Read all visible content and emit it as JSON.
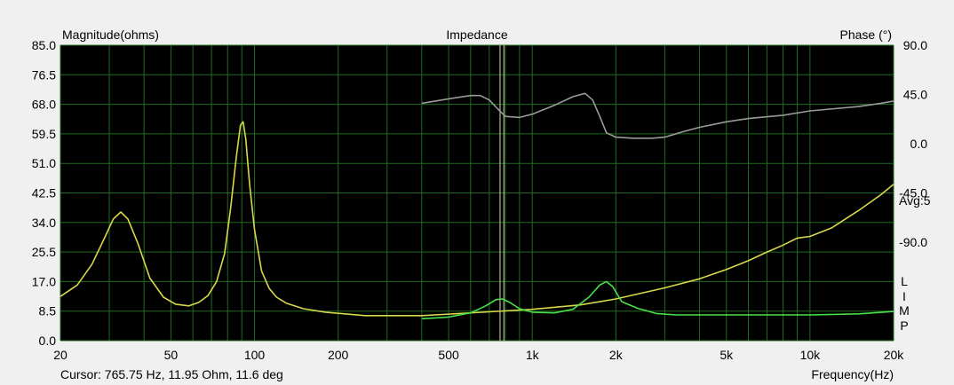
{
  "window": {
    "cursor_readout": "Cursor: 765.75 Hz, 11.95 Ohm, 11.6 deg"
  },
  "chart_data": {
    "type": "line",
    "title": "Impedance",
    "ylabel_left": "Magnitude(ohms)",
    "ylabel_right": "Phase (°)",
    "xlabel": "Frequency(Hz)",
    "x_scale": "log",
    "xlim": [
      20,
      20000
    ],
    "ylim_left": [
      0,
      85
    ],
    "ylim_right_phase": [
      -180,
      90
    ],
    "grid": true,
    "background": "#000000",
    "grid_color": "#1f6b1f",
    "x_tick_labels": [
      {
        "value": 20,
        "label": "20"
      },
      {
        "value": 50,
        "label": "50"
      },
      {
        "value": 100,
        "label": "100"
      },
      {
        "value": 200,
        "label": "200"
      },
      {
        "value": 500,
        "label": "500"
      },
      {
        "value": 1000,
        "label": "1k"
      },
      {
        "value": 2000,
        "label": "2k"
      },
      {
        "value": 5000,
        "label": "5k"
      },
      {
        "value": 10000,
        "label": "10k"
      },
      {
        "value": 20000,
        "label": "20k"
      }
    ],
    "y_ticks_left": [
      "85.0",
      "76.5",
      "68.0",
      "59.5",
      "51.0",
      "42.5",
      "34.0",
      "25.5",
      "17.0",
      "8.5",
      "0.0"
    ],
    "y_ticks_right": [
      {
        "value": 90,
        "label": "90.0"
      },
      {
        "value": 45,
        "label": "45.0"
      },
      {
        "value": 0,
        "label": "0.0"
      },
      {
        "value": -45,
        "label": "-45.0"
      },
      {
        "value": -90,
        "label": "-90.0"
      }
    ],
    "right_annotations": [
      "Avg:5",
      "L",
      "I",
      "M",
      "P"
    ],
    "cursor_x": [
      765.75,
      790
    ],
    "series": [
      {
        "color": "#d8d84a",
        "axis": "left",
        "x": [
          20,
          23,
          26,
          29,
          31,
          33,
          35,
          38,
          42,
          47,
          52,
          58,
          63,
          68,
          73,
          78,
          82,
          86,
          89,
          91,
          93,
          96,
          100,
          106,
          113,
          120,
          130,
          150,
          180,
          250,
          400,
          700,
          1000,
          1500,
          2000,
          3000,
          4000,
          5000,
          6000,
          7000,
          8000,
          9000,
          10000,
          12000,
          15000,
          18000,
          20000
        ],
        "y": [
          12.7,
          16,
          22,
          30,
          35,
          37,
          35,
          28,
          18,
          12.5,
          10.5,
          10,
          11,
          13,
          17,
          25,
          38,
          53,
          62,
          63,
          58,
          45,
          32,
          20,
          15,
          12.5,
          10.8,
          9.2,
          8.2,
          7.2,
          7.2,
          8.3,
          9,
          10.3,
          12,
          15.2,
          17.8,
          20.5,
          23,
          25.5,
          27.5,
          29.5,
          30,
          32.5,
          37.5,
          42,
          45
        ]
      },
      {
        "color": "#4ae04a",
        "axis": "left",
        "x": [
          400,
          500,
          600,
          680,
          740,
          780,
          830,
          900,
          1000,
          1200,
          1400,
          1600,
          1750,
          1850,
          1950,
          2100,
          2400,
          2800,
          3300,
          4000,
          6000,
          8000,
          10000,
          15000,
          20000
        ],
        "y": [
          6.3,
          6.8,
          8,
          10,
          11.8,
          12,
          11,
          9.2,
          8.2,
          8,
          9,
          12.5,
          16,
          17,
          15.5,
          11.2,
          9.3,
          7.8,
          7.4,
          7.4,
          7.4,
          7.4,
          7.4,
          7.7,
          8.4
        ]
      },
      {
        "color": "#9a9a9a",
        "axis": "right",
        "x": [
          400,
          500,
          600,
          650,
          700,
          750,
          800,
          900,
          1000,
          1200,
          1400,
          1550,
          1650,
          1750,
          1850,
          2000,
          2300,
          2700,
          3000,
          3500,
          4000,
          5000,
          6000,
          8000,
          10000,
          15000,
          18000,
          20000
        ],
        "y": [
          37,
          41,
          44,
          44,
          40,
          32,
          25,
          24,
          27,
          35,
          43,
          46,
          40,
          25,
          10,
          6,
          5,
          5,
          6,
          11,
          15,
          20,
          23,
          26,
          30,
          34,
          37,
          39
        ]
      }
    ]
  }
}
